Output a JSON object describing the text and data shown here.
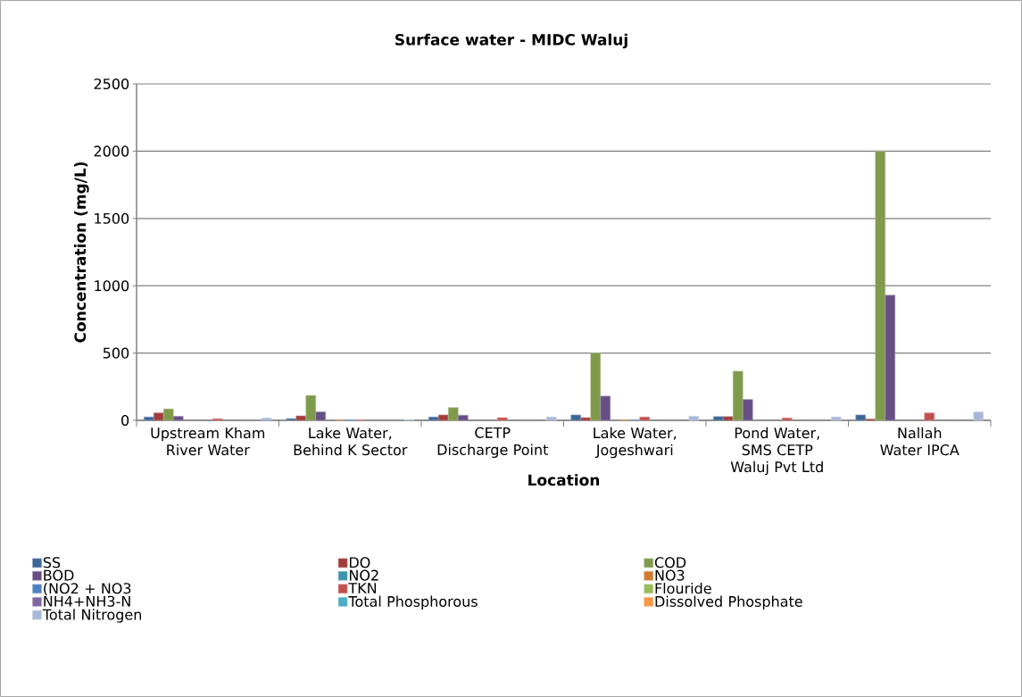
{
  "chart_data": {
    "type": "bar",
    "title": "Surface water - MIDC Waluj",
    "xlabel": "Location",
    "ylabel": "Concentration (mg/L)",
    "categories": [
      "Upstream Kham River Water",
      "Lake Water, Behind K Sector",
      "CETP Discharge Point",
      "Lake Water, Jogeshwari",
      "Pond Water, SMS CETP Waluj Pvt Ltd",
      "Nallah Water IPCA"
    ],
    "series": [
      {
        "name": "SS",
        "color": "#3c6698",
        "values": [
          25,
          13,
          25,
          40,
          28,
          40
        ]
      },
      {
        "name": "DO",
        "color": "#a03c3a",
        "values": [
          55,
          33,
          40,
          20,
          28,
          10
        ]
      },
      {
        "name": "COD",
        "color": "#7e9a4a",
        "values": [
          85,
          185,
          95,
          500,
          365,
          2000
        ]
      },
      {
        "name": "BOD",
        "color": "#674f86",
        "values": [
          30,
          63,
          38,
          180,
          155,
          930
        ]
      },
      {
        "name": "NO2",
        "color": "#3d94ab",
        "values": [
          null,
          null,
          null,
          null,
          null,
          null
        ]
      },
      {
        "name": "NO3",
        "color": "#d07a2e",
        "values": [
          null,
          5,
          null,
          5,
          null,
          null
        ]
      },
      {
        "name": "(NO2 + NO3",
        "color": "#4f81bd",
        "values": [
          null,
          5,
          null,
          5,
          null,
          null
        ]
      },
      {
        "name": "TKN",
        "color": "#c0504d",
        "values": [
          12,
          2,
          20,
          25,
          18,
          55
        ]
      },
      {
        "name": "Flouride",
        "color": "#9bbb59",
        "values": [
          null,
          null,
          null,
          null,
          null,
          null
        ]
      },
      {
        "name": "NH4+NH3-N",
        "color": "#8064a2",
        "values": [
          null,
          null,
          null,
          null,
          null,
          null
        ]
      },
      {
        "name": "Total Phosphorous",
        "color": "#4bacc6",
        "values": [
          null,
          null,
          null,
          null,
          null,
          null
        ]
      },
      {
        "name": "Dissolved Phosphate",
        "color": "#f79646",
        "values": [
          null,
          null,
          null,
          null,
          null,
          null
        ]
      },
      {
        "name": "Total Nitrogen",
        "color": "#a7b8d8",
        "values": [
          18,
          5,
          25,
          30,
          25,
          62
        ]
      }
    ],
    "ylim": [
      0,
      2500
    ],
    "yticks": [
      0,
      500,
      1000,
      1500,
      2000,
      2500
    ],
    "grid": "y",
    "legend": "bottom"
  }
}
